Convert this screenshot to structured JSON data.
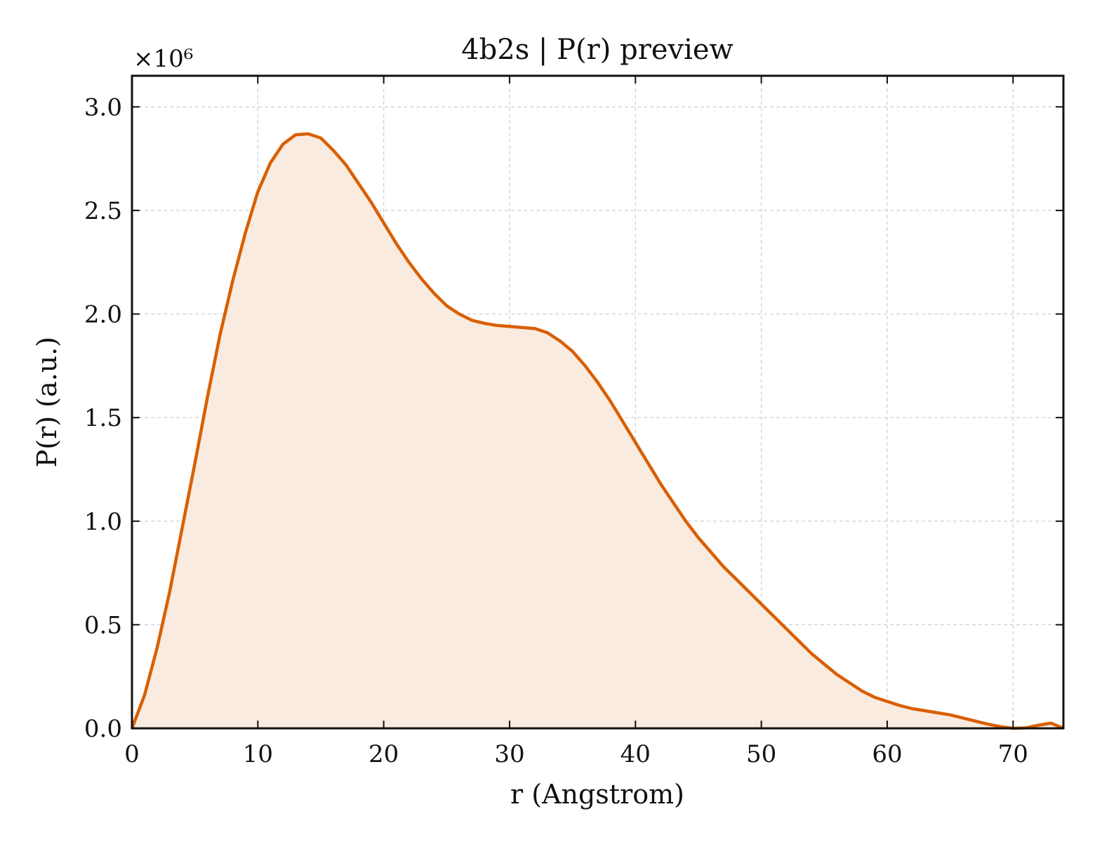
{
  "chart_data": {
    "type": "area",
    "title": "4b2s | P(r) preview",
    "xlabel": "r (Angstrom)",
    "ylabel": "P(r) (a.u.)",
    "y_multiplier_label": "×10⁶",
    "xlim": [
      0,
      74
    ],
    "ylim": [
      0,
      3.15
    ],
    "x_ticks": [
      0,
      10,
      20,
      30,
      40,
      50,
      60,
      70
    ],
    "x_tick_labels": [
      "0",
      "10",
      "20",
      "30",
      "40",
      "50",
      "60",
      "70"
    ],
    "y_ticks": [
      0,
      0.5,
      1.0,
      1.5,
      2.0,
      2.5,
      3.0
    ],
    "y_tick_labels": [
      "0.0",
      "0.5",
      "1.0",
      "1.5",
      "2.0",
      "2.5",
      "3.0"
    ],
    "grid": true,
    "colors": {
      "line": "#d95f02",
      "fill": "#f9ebe0"
    },
    "series": [
      {
        "x": [
          0,
          1,
          2,
          3,
          4,
          5,
          6,
          7,
          8,
          9,
          10,
          11,
          12,
          13,
          14,
          15,
          16,
          17,
          18,
          19,
          20,
          21,
          22,
          23,
          24,
          25,
          26,
          27,
          28,
          29,
          30,
          31,
          32,
          33,
          34,
          35,
          36,
          37,
          38,
          39,
          40,
          41,
          42,
          43,
          44,
          45,
          46,
          47,
          48,
          49,
          50,
          51,
          52,
          53,
          54,
          55,
          56,
          57,
          58,
          59,
          60,
          61,
          62,
          63,
          64,
          65,
          66,
          67,
          68,
          69,
          70,
          71,
          72,
          73,
          74
        ],
        "values": [
          0.0,
          0.16,
          0.39,
          0.66,
          0.97,
          1.28,
          1.6,
          1.9,
          2.16,
          2.39,
          2.59,
          2.73,
          2.82,
          2.865,
          2.87,
          2.85,
          2.79,
          2.72,
          2.63,
          2.54,
          2.44,
          2.34,
          2.25,
          2.17,
          2.1,
          2.04,
          2.0,
          1.97,
          1.955,
          1.945,
          1.94,
          1.935,
          1.93,
          1.91,
          1.87,
          1.82,
          1.75,
          1.67,
          1.58,
          1.48,
          1.38,
          1.28,
          1.18,
          1.09,
          1.0,
          0.92,
          0.85,
          0.78,
          0.72,
          0.66,
          0.6,
          0.54,
          0.48,
          0.42,
          0.36,
          0.31,
          0.26,
          0.22,
          0.18,
          0.15,
          0.13,
          0.11,
          0.095,
          0.085,
          0.075,
          0.065,
          0.05,
          0.035,
          0.02,
          0.008,
          0.0,
          0.002,
          0.015,
          0.025,
          0.0
        ]
      }
    ]
  }
}
